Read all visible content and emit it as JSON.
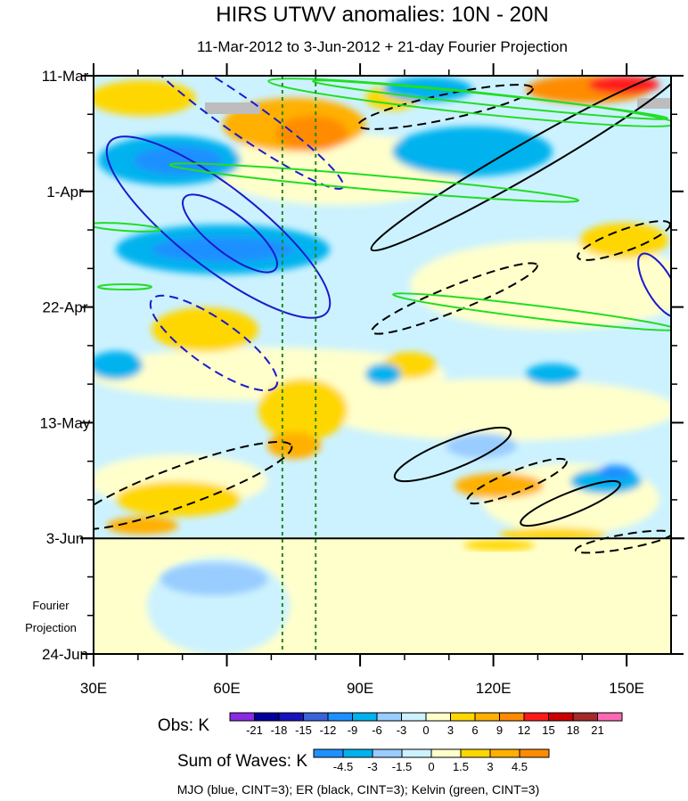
{
  "chart_data": {
    "type": "heatmap",
    "title": "HIRS UTWV anomalies: 10N - 20N",
    "subtitle": "11-Mar-2012 to 3-Jun-2012 + 21-day Fourier Projection",
    "x_ticks": [
      {
        "value": 30,
        "label": "30E"
      },
      {
        "value": 60,
        "label": "60E"
      },
      {
        "value": 90,
        "label": "90E"
      },
      {
        "value": 120,
        "label": "120E"
      },
      {
        "value": 150,
        "label": "150E"
      }
    ],
    "xlim": [
      30,
      160
    ],
    "y_ticks": [
      {
        "day": 0,
        "label": "11-Mar"
      },
      {
        "day": 21,
        "label": "1-Apr"
      },
      {
        "day": 42,
        "label": "22-Apr"
      },
      {
        "day": 63,
        "label": "13-May"
      },
      {
        "day": 84,
        "label": "3-Jun"
      },
      {
        "day": 105,
        "label": "24-Jun"
      }
    ],
    "forecast_start_day": 84,
    "forecast_label": [
      "Fourier",
      "Projection"
    ],
    "vertical_markers_lon": [
      72.5,
      80
    ],
    "obs_colorbar": {
      "title": "Obs: K",
      "levels": [
        "-21",
        "-18",
        "-15",
        "-12",
        "-9",
        "-6",
        "-3",
        "0",
        "3",
        "6",
        "9",
        "12",
        "15",
        "18",
        "21"
      ],
      "colors": [
        "#8a2be2",
        "#000099",
        "#1515bb",
        "#3a63d8",
        "#1e90ff",
        "#00b2ee",
        "#99ccff",
        "#ccf2ff",
        "#ffffcc",
        "#ffd700",
        "#ffb000",
        "#ff8c00",
        "#ff1a1a",
        "#cc0000",
        "#a52a2a",
        "#ff69b4"
      ]
    },
    "waves_colorbar": {
      "title": "Sum of Waves: K",
      "levels": [
        "-4.5",
        "-3",
        "-1.5",
        "0",
        "1.5",
        "3",
        "4.5"
      ],
      "colors": [
        "#1e90ff",
        "#00b2ee",
        "#99ccff",
        "#ccf2ff",
        "#ffffcc",
        "#ffd700",
        "#ffb000",
        "#ff8c00"
      ]
    },
    "contours": {
      "mjo_color": "#1a1acc",
      "er_color": "#000000",
      "kelvin_color": "#22dd22"
    },
    "footer": "MJO (blue, CINT=3); ER (black, CINT=3); Kelvin (green, CINT=3)"
  }
}
